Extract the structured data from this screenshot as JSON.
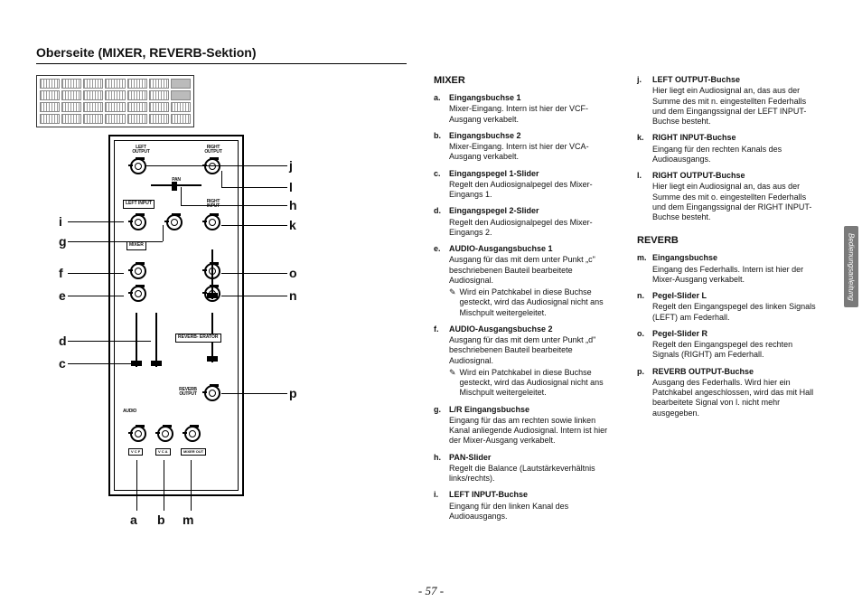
{
  "page": {
    "title": "Oberseite (MIXER, REVERB-Sektion)",
    "number": "- 57 -",
    "side_tab": "Bedienungsanleitung"
  },
  "diagram": {
    "callouts": {
      "a": "a",
      "b": "b",
      "c": "c",
      "d": "d",
      "e": "e",
      "f": "f",
      "g": "g",
      "h": "h",
      "i": "i",
      "j": "j",
      "k": "k",
      "l": "l",
      "m": "m",
      "n": "n",
      "o": "o",
      "p": "p"
    },
    "labels": {
      "left_output": "LEFT\nOUTPUT",
      "right_output": "RIGHT\nOUTPUT",
      "pan": "PAN",
      "left_input": "LEFT\nINPUT",
      "right_input": "RIGHT\nINPUT",
      "mixer": "MIXER",
      "reverb": "REVERB-\nERATOR",
      "reverb_output": "REVERB\nOUTPUT",
      "audio": "AUDIO",
      "vcf": "V C F",
      "vca": "V C A",
      "mixer_out": "MIXER\nOUT"
    }
  },
  "mixer": {
    "heading": "MIXER",
    "items": [
      {
        "label": "a.",
        "title": "Eingangsbuchse 1",
        "desc": "Mixer-Eingang. Intern ist hier der VCF-Ausgang verkabelt."
      },
      {
        "label": "b.",
        "title": "Eingangsbuchse 2",
        "desc": "Mixer-Eingang. Intern ist hier der VCA-Ausgang verkabelt."
      },
      {
        "label": "c.",
        "title": "Eingangspegel 1-Slider",
        "desc": "Regelt den Audiosignalpegel des Mixer-Eingangs 1."
      },
      {
        "label": "d.",
        "title": "Eingangspegel 2-Slider",
        "desc": "Regelt den Audiosignalpegel des Mixer-Eingangs 2."
      },
      {
        "label": "e.",
        "title": "AUDIO-Ausgangsbuchse 1",
        "desc": "Ausgang für das mit dem unter Punkt „c\" beschriebenen Bauteil bearbeitete Audiosignal.",
        "note": "Wird ein Patchkabel in diese Buchse gesteckt, wird das Audiosignal nicht ans Mischpult weitergeleitet."
      },
      {
        "label": "f.",
        "title": "AUDIO-Ausgangsbuchse 2",
        "desc": "Ausgang für das mit dem unter Punkt „d\" beschriebenen Bauteil bearbeitete Audiosignal.",
        "note": "Wird ein Patchkabel in diese Buchse gesteckt, wird das Audiosignal nicht ans Mischpult weitergeleitet."
      },
      {
        "label": "g.",
        "title": "L/R Eingangsbuchse",
        "desc": "Eingang für das am rechten sowie linken Kanal anliegende Audiosignal. Intern ist hier der Mixer-Ausgang verkabelt."
      },
      {
        "label": "h.",
        "title": "PAN-Slider",
        "desc": "Regelt die Balance (Lautstärkeverhältnis links/rechts)."
      },
      {
        "label": "i.",
        "title": "LEFT INPUT-Buchse",
        "desc": "Eingang für den linken Kanal des Audioausgangs."
      }
    ]
  },
  "col2a": {
    "items": [
      {
        "label": "j.",
        "title": "LEFT OUTPUT-Buchse",
        "desc": "Hier liegt ein Audiosignal an, das aus der Summe des mit n. eingestellten Federhalls und dem Eingangssignal der LEFT INPUT-Buchse besteht."
      },
      {
        "label": "k.",
        "title": "RIGHT INPUT-Buchse",
        "desc": "Eingang für den rechten Kanals des Audioausgangs."
      },
      {
        "label": "l.",
        "title": "RIGHT OUTPUT-Buchse",
        "desc": "Hier liegt ein Audiosignal an, das aus der Summe des mit o. eingestellten Federhalls und dem Eingangssignal der RIGHT INPUT-Buchse besteht."
      }
    ]
  },
  "reverb": {
    "heading": "REVERB",
    "items": [
      {
        "label": "m.",
        "title": "Eingangsbuchse",
        "desc": "Eingang des Federhalls. Intern ist hier der Mixer-Ausgang verkabelt."
      },
      {
        "label": "n.",
        "title": "Pegel-Slider L",
        "desc": "Regelt den Eingangspegel des linken Signals (LEFT) am Federhall."
      },
      {
        "label": "o.",
        "title": "Pegel-Slider R",
        "desc": "Regelt den Eingangspegel des rechten Signals (RIGHT) am Federhall."
      },
      {
        "label": "p.",
        "title": "REVERB OUTPUT-Buchse",
        "desc": "Ausgang des Federhalls. Wird hier ein Patchkabel angeschlossen, wird das mit Hall bearbeitete Signal von l. nicht mehr ausgegeben."
      }
    ]
  }
}
